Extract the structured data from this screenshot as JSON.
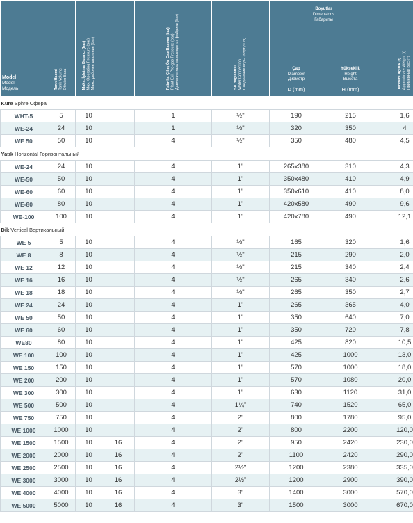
{
  "header": {
    "model": {
      "tr": "Model",
      "en": "Model",
      "ru": "Модель"
    },
    "tank": {
      "tr": "Tank Hacmi",
      "en": "Tank Volume",
      "ru": "Объём бака"
    },
    "maxpress": {
      "tr": "Maks. İşletme Basıncı (bar)",
      "en": "Max. Operating Pressure (bar)",
      "ru": "Макс. рабочее давление (bar)"
    },
    "factory": {
      "tr": "Fabrika Çıkış Ön Gaz Basıncı (bar)",
      "en": "Plant Exit Pre-gas Pressure (bar)",
      "ru": "Давление газа на выходе из фабрики (bar)"
    },
    "water": {
      "tr": "Su Bağlantısı",
      "en": "Water Connection",
      "ru": "Соединение воды (порту DN)"
    },
    "dims": {
      "tr": "Boyutlar",
      "en": "Dimensions",
      "ru": "Габариты"
    },
    "dia": {
      "tr": "Çap",
      "en": "Diameter",
      "ru": "Диаметр",
      "unit": "D (mm)"
    },
    "height": {
      "tr": "Yükseklik",
      "en": "Height",
      "ru": "Высота",
      "unit": "H (mm)"
    },
    "weight": {
      "tr": "Tahmini Ağırlık (t)",
      "en": "Approximate Weight (t)",
      "ru": "Примерный Вес (т)"
    }
  },
  "sections": [
    {
      "title": {
        "tr": "Küre",
        "en": "Sphre",
        "ru": "Сфера"
      },
      "rows": [
        {
          "model": "WHT-5",
          "vol": "5",
          "press": "10",
          "extra": "",
          "pre": "1",
          "conn": "½\"",
          "d": "190",
          "h": "215",
          "w": "1,6"
        },
        {
          "model": "WE-24",
          "vol": "24",
          "press": "10",
          "extra": "",
          "pre": "1",
          "conn": "½\"",
          "d": "320",
          "h": "350",
          "w": "4"
        },
        {
          "model": "WE 50",
          "vol": "50",
          "press": "10",
          "extra": "",
          "pre": "4",
          "conn": "½\"",
          "d": "350",
          "h": "480",
          "w": "4,5"
        }
      ]
    },
    {
      "title": {
        "tr": "Yatık",
        "en": "Horizontal",
        "ru": "Горизонтальный"
      },
      "rows": [
        {
          "model": "WE-24",
          "vol": "24",
          "press": "10",
          "extra": "",
          "pre": "4",
          "conn": "1\"",
          "d": "265x380",
          "h": "310",
          "w": "4,3"
        },
        {
          "model": "WE-50",
          "vol": "50",
          "press": "10",
          "extra": "",
          "pre": "4",
          "conn": "1\"",
          "d": "350x480",
          "h": "410",
          "w": "4,9"
        },
        {
          "model": "WE-60",
          "vol": "60",
          "press": "10",
          "extra": "",
          "pre": "4",
          "conn": "1\"",
          "d": "350x610",
          "h": "410",
          "w": "8,0"
        },
        {
          "model": "WE-80",
          "vol": "80",
          "press": "10",
          "extra": "",
          "pre": "4",
          "conn": "1\"",
          "d": "420x580",
          "h": "490",
          "w": "9,6"
        },
        {
          "model": "WE-100",
          "vol": "100",
          "press": "10",
          "extra": "",
          "pre": "4",
          "conn": "1\"",
          "d": "420x780",
          "h": "490",
          "w": "12,1"
        }
      ]
    },
    {
      "title": {
        "tr": "Dik",
        "en": "Vertical",
        "ru": "Вертикальный"
      },
      "rows": [
        {
          "model": "WE 5",
          "vol": "5",
          "press": "10",
          "extra": "",
          "pre": "4",
          "conn": "½\"",
          "d": "165",
          "h": "320",
          "w": "1,6"
        },
        {
          "model": "WE 8",
          "vol": "8",
          "press": "10",
          "extra": "",
          "pre": "4",
          "conn": "½\"",
          "d": "215",
          "h": "290",
          "w": "2,0"
        },
        {
          "model": "WE 12",
          "vol": "12",
          "press": "10",
          "extra": "",
          "pre": "4",
          "conn": "½\"",
          "d": "215",
          "h": "340",
          "w": "2,4"
        },
        {
          "model": "WE 16",
          "vol": "16",
          "press": "10",
          "extra": "",
          "pre": "4",
          "conn": "½\"",
          "d": "265",
          "h": "340",
          "w": "2,6"
        },
        {
          "model": "WE 18",
          "vol": "18",
          "press": "10",
          "extra": "",
          "pre": "4",
          "conn": "½\"",
          "d": "265",
          "h": "350",
          "w": "2,7"
        },
        {
          "model": "WE 24",
          "vol": "24",
          "press": "10",
          "extra": "",
          "pre": "4",
          "conn": "1\"",
          "d": "265",
          "h": "365",
          "w": "4,0"
        },
        {
          "model": "WE 50",
          "vol": "50",
          "press": "10",
          "extra": "",
          "pre": "4",
          "conn": "1\"",
          "d": "350",
          "h": "640",
          "w": "7,0"
        },
        {
          "model": "WE 60",
          "vol": "60",
          "press": "10",
          "extra": "",
          "pre": "4",
          "conn": "1\"",
          "d": "350",
          "h": "720",
          "w": "7,8"
        },
        {
          "model": "WE80",
          "vol": "80",
          "press": "10",
          "extra": "",
          "pre": "4",
          "conn": "1\"",
          "d": "425",
          "h": "820",
          "w": "10,5"
        },
        {
          "model": "WE 100",
          "vol": "100",
          "press": "10",
          "extra": "",
          "pre": "4",
          "conn": "1\"",
          "d": "425",
          "h": "1000",
          "w": "13,0"
        },
        {
          "model": "WE 150",
          "vol": "150",
          "press": "10",
          "extra": "",
          "pre": "4",
          "conn": "1\"",
          "d": "570",
          "h": "1000",
          "w": "18,0"
        },
        {
          "model": "WE 200",
          "vol": "200",
          "press": "10",
          "extra": "",
          "pre": "4",
          "conn": "1\"",
          "d": "570",
          "h": "1080",
          "w": "20,0"
        },
        {
          "model": "WE 300",
          "vol": "300",
          "press": "10",
          "extra": "",
          "pre": "4",
          "conn": "1\"",
          "d": "630",
          "h": "1120",
          "w": "31,0"
        },
        {
          "model": "WE 500",
          "vol": "500",
          "press": "10",
          "extra": "",
          "pre": "4",
          "conn": "1¼\"",
          "d": "740",
          "h": "1520",
          "w": "65,0"
        },
        {
          "model": "WE 750",
          "vol": "750",
          "press": "10",
          "extra": "",
          "pre": "4",
          "conn": "2\"",
          "d": "800",
          "h": "1780",
          "w": "95,0"
        },
        {
          "model": "WE 1000",
          "vol": "1000",
          "press": "10",
          "extra": "",
          "pre": "4",
          "conn": "2\"",
          "d": "800",
          "h": "2200",
          "w": "120,0"
        },
        {
          "model": "WE 1500",
          "vol": "1500",
          "press": "10",
          "extra": "16",
          "pre": "4",
          "conn": "2\"",
          "d": "950",
          "h": "2420",
          "w": "230,0"
        },
        {
          "model": "WE 2000",
          "vol": "2000",
          "press": "10",
          "extra": "16",
          "pre": "4",
          "conn": "2\"",
          "d": "1100",
          "h": "2420",
          "w": "290,0"
        },
        {
          "model": "WE 2500",
          "vol": "2500",
          "press": "10",
          "extra": "16",
          "pre": "4",
          "conn": "2½\"",
          "d": "1200",
          "h": "2380",
          "w": "335,0"
        },
        {
          "model": "WE 3000",
          "vol": "3000",
          "press": "10",
          "extra": "16",
          "pre": "4",
          "conn": "2½\"",
          "d": "1200",
          "h": "2900",
          "w": "390,0"
        },
        {
          "model": "WE 4000",
          "vol": "4000",
          "press": "10",
          "extra": "16",
          "pre": "4",
          "conn": "3\"",
          "d": "1400",
          "h": "3000",
          "w": "570,0"
        },
        {
          "model": "WE 5000",
          "vol": "5000",
          "press": "10",
          "extra": "16",
          "pre": "4",
          "conn": "3\"",
          "d": "1500",
          "h": "3000",
          "w": "670,0"
        }
      ]
    }
  ],
  "colors": {
    "header_bg": "#4d7b93",
    "row_alt": "#e6f1f3",
    "border": "#cfd7dd"
  }
}
